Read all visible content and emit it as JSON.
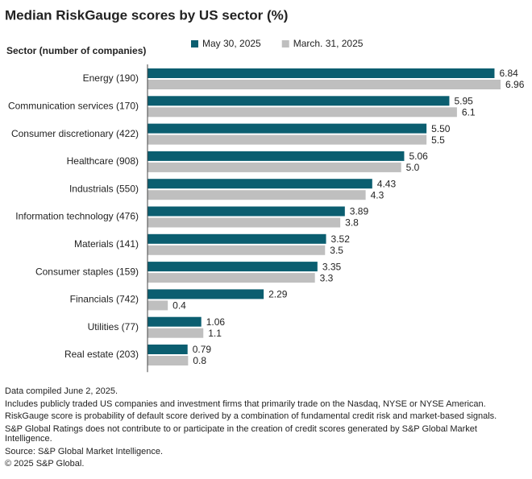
{
  "chart_data": {
    "type": "bar",
    "orientation": "horizontal",
    "title": "Median RiskGauge scores by US sector (%)",
    "y_label": "Sector (number of companies)",
    "categories": [
      "Energy (190)",
      "Communication services (170)",
      "Consumer discretionary (422)",
      "Healthcare (908)",
      "Industrials (550)",
      "Information technology (476)",
      "Materials (141)",
      "Consumer staples (159)",
      "Financials (742)",
      "Utilities (77)",
      "Real estate (203)"
    ],
    "series": [
      {
        "name": "May 30, 2025",
        "color": "#0b5e70",
        "values": [
          6.84,
          5.95,
          5.5,
          5.06,
          4.43,
          3.89,
          3.52,
          3.35,
          2.29,
          1.06,
          0.79
        ],
        "value_labels": [
          "6.84",
          "5.95",
          "5.50",
          "5.06",
          "4.43",
          "3.89",
          "3.52",
          "3.35",
          "2.29",
          "1.06",
          "0.79"
        ]
      },
      {
        "name": "March. 31, 2025",
        "color": "#bfbfbf",
        "values": [
          6.96,
          6.1,
          5.5,
          5,
          4.3,
          3.8,
          3.5,
          3.3,
          0.4,
          1.1,
          0.8
        ],
        "value_labels": [
          "6.96",
          "6.1",
          "5.5",
          "5.0",
          "4.3",
          "3.8",
          "3.5",
          "3.3",
          "0.4",
          "1.1",
          "0.8"
        ]
      }
    ],
    "xlim": [
      0,
      7.5
    ],
    "legend": "top",
    "notes": [
      "Data compiled June 2, 2025.",
      "Includes publicly traded US companies and investment firms that primarily trade on the Nasdaq, NYSE or NYSE American.",
      "RiskGauge score is probability of default score derived by a combination of fundamental credit risk and market-based signals.",
      "S&P Global Ratings does not contribute to or participate in the creation of credit scores generated by S&P Global Market Intelligence.",
      "Source: S&P Global Market Intelligence.",
      "© 2025 S&P Global."
    ]
  }
}
